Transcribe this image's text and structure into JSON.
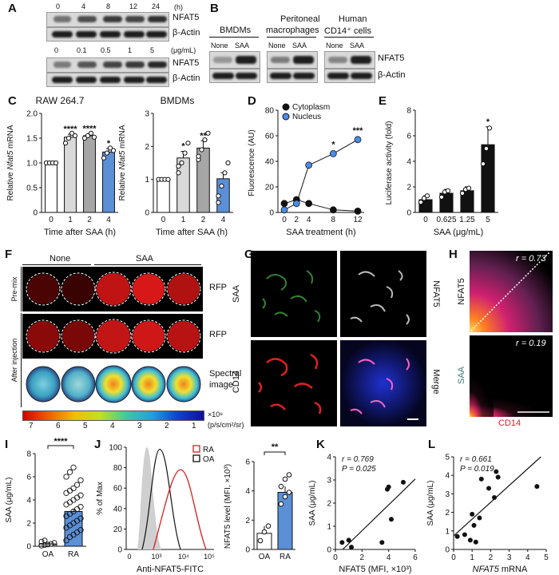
{
  "panelA": {
    "label": "A",
    "time_ticks": [
      "0",
      "4",
      "8",
      "12",
      "24"
    ],
    "time_unit": "(h)",
    "dose_ticks": [
      "0",
      "0.1",
      "0.5",
      "1",
      "5"
    ],
    "dose_unit": "(μg/mL)",
    "row_nfat5": "NFAT5",
    "row_actin": "β-Actin"
  },
  "panelB": {
    "label": "B",
    "groups": [
      "BMDMs",
      "Peritoneal macrophages",
      "Human CD14+ cells"
    ],
    "group_line1": [
      "BMDMs",
      "Peritoneal",
      "Human"
    ],
    "group_line2": [
      "",
      "macrophages",
      "CD14⁺ cells"
    ],
    "lane_none": "None",
    "lane_saa": "SAA",
    "row_nfat5": "NFAT5",
    "row_actin": "β-Actin"
  },
  "panelC": {
    "label": "C",
    "chart_data": [
      {
        "type": "bar",
        "title": "RAW 264.7",
        "categories": [
          "0",
          "1",
          "2",
          "4"
        ],
        "values": [
          1.0,
          1.52,
          1.55,
          1.22
        ],
        "errors": [
          0.02,
          0.06,
          0.04,
          0.07
        ],
        "significance": [
          "",
          "****",
          "****",
          "*"
        ],
        "ylabel": "Relative Nfat5 mRNA",
        "xlabel": "Time after SAA (h)",
        "ylim": [
          0,
          2.0
        ],
        "yticks": [
          "0",
          "0.5",
          "1.0",
          "1.5",
          "2.0"
        ],
        "colors": [
          "#ffffff",
          "#d9d9d9",
          "#a6a6a6",
          "#5b8fd6"
        ]
      },
      {
        "type": "bar",
        "title": "BMDMs",
        "categories": [
          "0",
          "1",
          "2",
          "4"
        ],
        "values": [
          1.0,
          1.65,
          1.95,
          1.02
        ],
        "errors": [
          0.03,
          0.2,
          0.22,
          0.18
        ],
        "significance": [
          "",
          "*",
          "**",
          ""
        ],
        "ylabel": "Relative Nfat5 mRNA",
        "xlabel": "Time after SAA (h)",
        "ylim": [
          0,
          3
        ],
        "yticks": [
          "0",
          "1",
          "2",
          "3"
        ],
        "colors": [
          "#ffffff",
          "#d9d9d9",
          "#a6a6a6",
          "#5b8fd6"
        ]
      }
    ]
  },
  "panelD": {
    "label": "D",
    "chart_data": {
      "type": "line",
      "x": [
        0,
        2,
        4,
        8,
        12
      ],
      "xticks": [
        "0",
        "2",
        "4",
        "8",
        "12"
      ],
      "series": [
        {
          "name": "Cytoplasm",
          "values": [
            7,
            10,
            7,
            2,
            1
          ],
          "color": "#111111"
        },
        {
          "name": "Nucleus",
          "values": [
            2,
            7,
            37,
            46,
            57
          ],
          "color": "#4a8ce6"
        }
      ],
      "significance": [
        "",
        "",
        "",
        "*",
        "***"
      ],
      "ylabel": "Fluorescence (AU)",
      "xlabel": "SAA treatment (h)",
      "ylim": [
        0,
        80
      ],
      "yticks": [
        "0",
        "20",
        "40",
        "60",
        "80"
      ],
      "legend": "top-left"
    }
  },
  "panelE": {
    "label": "E",
    "chart_data": {
      "type": "bar",
      "categories": [
        "0",
        "0.625",
        "1.25",
        "5"
      ],
      "values": [
        1.0,
        1.5,
        1.7,
        5.3
      ],
      "errors": [
        0.3,
        0.3,
        0.3,
        1.4
      ],
      "significance": [
        "",
        "",
        "",
        "*"
      ],
      "ylabel": "Luciferase activity (fold)",
      "xlabel": "SAA (μg/mL)",
      "ylim": [
        0,
        8
      ],
      "yticks": [
        "0",
        "2",
        "4",
        "6",
        "8"
      ]
    }
  },
  "panelF": {
    "label": "F",
    "col_none": "None",
    "col_saa": "SAA",
    "row_premix": "Pre-mix",
    "row_after": "After injection",
    "row_rfp1": "RFP",
    "row_rfp2": "RFP",
    "row_spectral1": "Spectral",
    "row_spectral2": "image",
    "scale_ticks": [
      "7",
      "6",
      "5",
      "4",
      "3",
      "2",
      "1"
    ],
    "scale_unit1": "×10⁸",
    "scale_unit2": "(p/s/cm²/sr)"
  },
  "panelG": {
    "label": "G",
    "saa": "SAA",
    "nfat5": "NFAT5",
    "cd14": "CD14",
    "merge": "Merge",
    "colors": {
      "saa": "#3a7a3a",
      "cd14": "#d42020"
    }
  },
  "panelH": {
    "label": "H",
    "r_top": "r = 0.73",
    "r_bottom": "r = 0.19",
    "y_top": "NFAT5",
    "y_bottom": "SAA",
    "x_label": "CD14"
  },
  "panelI": {
    "label": "I",
    "chart_data": {
      "type": "bar",
      "categories": [
        "OA",
        "RA"
      ],
      "values": [
        0.2,
        3.0
      ],
      "errors": [
        0.1,
        0.25
      ],
      "significance": "****",
      "ylabel": "SAA (μg/mL)",
      "ylim": [
        0,
        8
      ],
      "yticks": [
        "0",
        "2",
        "4",
        "6",
        "8"
      ],
      "colors": [
        "#ffffff",
        "#5b8fd6"
      ]
    }
  },
  "panelJ": {
    "label": "J",
    "chart_data": [
      {
        "type": "line",
        "series": [
          {
            "name": "RA",
            "color": "#d42020"
          },
          {
            "name": "OA",
            "color": "#111111"
          }
        ],
        "ylabel": "% of Max",
        "xlabel": "Anti-NFAT5-FITC",
        "yticks": [
          "0",
          "20",
          "40",
          "60",
          "80",
          "100"
        ],
        "xticks": [
          "0",
          "10³",
          "10⁴",
          "10⁵"
        ]
      },
      {
        "type": "bar",
        "categories": [
          "OA",
          "RA"
        ],
        "values": [
          1.1,
          3.9
        ],
        "errors": [
          0.5,
          0.4
        ],
        "significance": "**",
        "ylabel": "NFAT5 level (MFI, ×10³)",
        "ylim": [
          0,
          6
        ],
        "yticks": [
          "0",
          "2",
          "4",
          "6"
        ],
        "colors": [
          "#ffffff",
          "#5b8fd6"
        ]
      }
    ]
  },
  "panelK": {
    "label": "K",
    "chart_data": {
      "type": "scatter",
      "x": [
        0.5,
        1.0,
        1.2,
        3.5,
        3.9,
        4.0,
        4.2,
        5.1
      ],
      "y": [
        0.3,
        0.4,
        0.1,
        0.3,
        2.6,
        2.7,
        1.3,
        2.9
      ],
      "r_text": "r = 0.769",
      "p_text": "P = 0.025",
      "xlabel": "NFAT5 (MFI, ×10³)",
      "ylabel": "SAA (μg/mL)",
      "xlim": [
        0,
        6
      ],
      "ylim": [
        0,
        4
      ],
      "xticks": [
        "0",
        "2",
        "4",
        "6"
      ],
      "yticks": [
        "0",
        "1",
        "2",
        "3",
        "4"
      ]
    }
  },
  "panelL": {
    "label": "L",
    "chart_data": {
      "type": "scatter",
      "x": [
        0.2,
        0.6,
        0.9,
        1.0,
        1.1,
        1.2,
        1.4,
        1.5,
        1.9,
        2.2,
        2.3,
        2.4,
        4.5
      ],
      "y": [
        0.7,
        0.8,
        0.5,
        1.9,
        1.3,
        0.4,
        1.7,
        3.8,
        3.3,
        2.8,
        4.2,
        3.9,
        3.4
      ],
      "r_text": "r = 0.661",
      "p_text": "P = 0.019",
      "xlabel": "NFAT5 mRNA",
      "ylabel": "SAA (μg/mL)",
      "xlim": [
        0,
        5
      ],
      "ylim": [
        0,
        5
      ],
      "xticks": [
        "0",
        "1",
        "2",
        "3",
        "4",
        "5"
      ],
      "yticks": [
        "0",
        "1",
        "2",
        "3",
        "4",
        "5"
      ]
    }
  }
}
